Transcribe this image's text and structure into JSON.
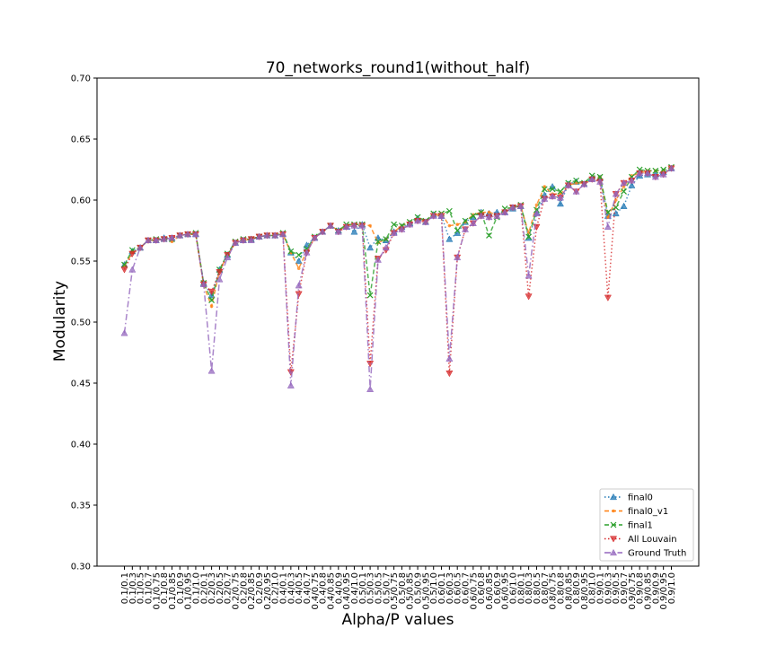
{
  "chart_data": {
    "type": "line",
    "title": "70_networks_round1(without_half)",
    "xlabel": "Alpha/P values",
    "ylabel": "Modularity",
    "ylim": [
      0.3,
      0.7
    ],
    "yticks": [
      "0.30",
      "0.35",
      "0.40",
      "0.45",
      "0.50",
      "0.55",
      "0.60",
      "0.65",
      "0.70"
    ],
    "legend_position": "lower-right",
    "categories": [
      "0.1/0.1",
      "0.1/0.3",
      "0.1/0.5",
      "0.1/0.7",
      "0.1/0.75",
      "0.1/0.8",
      "0.1/0.85",
      "0.1/0.9",
      "0.1/0.95",
      "0.1/1.0",
      "0.2/0.1",
      "0.2/0.3",
      "0.2/0.5",
      "0.2/0.7",
      "0.2/0.75",
      "0.2/0.8",
      "0.2/0.85",
      "0.2/0.9",
      "0.2/0.95",
      "0.2/1.0",
      "0.4/0.1",
      "0.4/0.3",
      "0.4/0.5",
      "0.4/0.7",
      "0.4/0.75",
      "0.4/0.8",
      "0.4/0.85",
      "0.4/0.9",
      "0.4/0.95",
      "0.4/1.0",
      "0.5/0.1",
      "0.5/0.3",
      "0.5/0.5",
      "0.5/0.7",
      "0.5/0.75",
      "0.5/0.8",
      "0.5/0.85",
      "0.5/0.9",
      "0.5/0.95",
      "0.5/1.0",
      "0.6/0.1",
      "0.6/0.3",
      "0.6/0.5",
      "0.6/0.7",
      "0.6/0.75",
      "0.6/0.8",
      "0.6/0.85",
      "0.6/0.9",
      "0.6/0.95",
      "0.6/1.0",
      "0.8/0.1",
      "0.8/0.3",
      "0.8/0.5",
      "0.8/0.7",
      "0.8/0.75",
      "0.8/0.8",
      "0.8/0.85",
      "0.8/0.9",
      "0.8/0.95",
      "0.8/1.0",
      "0.9/0.1",
      "0.9/0.3",
      "0.9/0.5",
      "0.9/0.7",
      "0.9/0.75",
      "0.9/0.8",
      "0.9/0.85",
      "0.9/0.9",
      "0.9/0.95",
      "0.9/1.0"
    ],
    "series": [
      {
        "name": "final0",
        "color": "#1f77b4",
        "linestyle": "dotted",
        "marker": "triangle-up",
        "values": [
          0.547,
          0.558,
          0.561,
          0.567,
          0.567,
          0.569,
          0.569,
          0.571,
          0.572,
          0.572,
          0.532,
          0.522,
          0.543,
          0.555,
          0.565,
          0.567,
          0.568,
          0.57,
          0.571,
          0.571,
          0.572,
          0.557,
          0.55,
          0.563,
          0.569,
          0.574,
          0.579,
          0.575,
          0.578,
          0.574,
          0.58,
          0.561,
          0.569,
          0.567,
          0.574,
          0.578,
          0.581,
          0.585,
          0.582,
          0.588,
          0.587,
          0.568,
          0.573,
          0.582,
          0.586,
          0.59,
          0.589,
          0.59,
          0.59,
          0.593,
          0.595,
          0.569,
          0.59,
          0.604,
          0.611,
          0.597,
          0.613,
          0.615,
          0.613,
          0.618,
          0.618,
          0.587,
          0.589,
          0.595,
          0.612,
          0.62,
          0.621,
          0.621,
          0.623,
          0.626
        ]
      },
      {
        "name": "final0_v1",
        "color": "#ff7f0e",
        "linestyle": "dashed",
        "marker": "point",
        "values": [
          0.546,
          0.557,
          0.561,
          0.567,
          0.567,
          0.568,
          0.566,
          0.571,
          0.572,
          0.572,
          0.53,
          0.513,
          0.542,
          0.555,
          0.565,
          0.567,
          0.568,
          0.57,
          0.571,
          0.571,
          0.572,
          0.557,
          0.544,
          0.558,
          0.569,
          0.574,
          0.579,
          0.575,
          0.579,
          0.58,
          0.58,
          0.579,
          0.565,
          0.568,
          0.574,
          0.579,
          0.582,
          0.584,
          0.583,
          0.587,
          0.589,
          0.579,
          0.58,
          0.582,
          0.588,
          0.59,
          0.59,
          0.588,
          0.591,
          0.594,
          0.595,
          0.573,
          0.596,
          0.611,
          0.605,
          0.605,
          0.612,
          0.614,
          0.614,
          0.616,
          0.619,
          0.586,
          0.6,
          0.611,
          0.62,
          0.622,
          0.624,
          0.624,
          0.624,
          0.627
        ]
      },
      {
        "name": "final1",
        "color": "#2ca02c",
        "linestyle": "dashed",
        "marker": "x",
        "values": [
          0.547,
          0.559,
          0.561,
          0.567,
          0.568,
          0.568,
          0.568,
          0.571,
          0.572,
          0.573,
          0.532,
          0.518,
          0.543,
          0.556,
          0.566,
          0.568,
          0.568,
          0.57,
          0.571,
          0.571,
          0.573,
          0.558,
          0.555,
          0.56,
          0.57,
          0.574,
          0.579,
          0.575,
          0.58,
          0.58,
          0.58,
          0.522,
          0.566,
          0.568,
          0.58,
          0.579,
          0.582,
          0.586,
          0.583,
          0.589,
          0.589,
          0.591,
          0.575,
          0.583,
          0.587,
          0.59,
          0.571,
          0.586,
          0.593,
          0.594,
          0.596,
          0.57,
          0.592,
          0.609,
          0.609,
          0.607,
          0.614,
          0.616,
          0.614,
          0.62,
          0.619,
          0.59,
          0.594,
          0.607,
          0.619,
          0.625,
          0.624,
          0.624,
          0.625,
          0.627
        ]
      },
      {
        "name": "All Louvain",
        "color": "#d62728",
        "linestyle": "dotted",
        "marker": "triangle-down",
        "values": [
          0.543,
          0.556,
          0.561,
          0.567,
          0.567,
          0.568,
          0.569,
          0.571,
          0.572,
          0.572,
          0.531,
          0.525,
          0.541,
          0.555,
          0.565,
          0.567,
          0.568,
          0.57,
          0.571,
          0.571,
          0.572,
          0.459,
          0.523,
          0.557,
          0.569,
          0.574,
          0.579,
          0.574,
          0.578,
          0.579,
          0.579,
          0.466,
          0.552,
          0.559,
          0.573,
          0.576,
          0.58,
          0.583,
          0.582,
          0.587,
          0.587,
          0.458,
          0.553,
          0.576,
          0.581,
          0.587,
          0.586,
          0.587,
          0.59,
          0.594,
          0.595,
          0.521,
          0.578,
          0.601,
          0.603,
          0.602,
          0.612,
          0.607,
          0.613,
          0.617,
          0.615,
          0.52,
          0.605,
          0.614,
          0.616,
          0.622,
          0.622,
          0.619,
          0.621,
          0.626
        ]
      },
      {
        "name": "Ground Truth",
        "color": "#9467bd",
        "linestyle": "dashdot",
        "marker": "triangle-up",
        "values": [
          0.491,
          0.543,
          0.561,
          0.567,
          0.567,
          0.568,
          0.569,
          0.571,
          0.572,
          0.572,
          0.531,
          0.46,
          0.535,
          0.553,
          0.565,
          0.567,
          0.567,
          0.57,
          0.571,
          0.571,
          0.572,
          0.448,
          0.53,
          0.557,
          0.569,
          0.574,
          0.579,
          0.574,
          0.578,
          0.579,
          0.579,
          0.445,
          0.551,
          0.561,
          0.573,
          0.576,
          0.58,
          0.583,
          0.582,
          0.587,
          0.587,
          0.47,
          0.553,
          0.576,
          0.581,
          0.587,
          0.586,
          0.587,
          0.59,
          0.594,
          0.595,
          0.538,
          0.589,
          0.601,
          0.603,
          0.602,
          0.612,
          0.607,
          0.613,
          0.617,
          0.615,
          0.578,
          0.605,
          0.614,
          0.616,
          0.622,
          0.622,
          0.619,
          0.621,
          0.626
        ]
      }
    ]
  }
}
